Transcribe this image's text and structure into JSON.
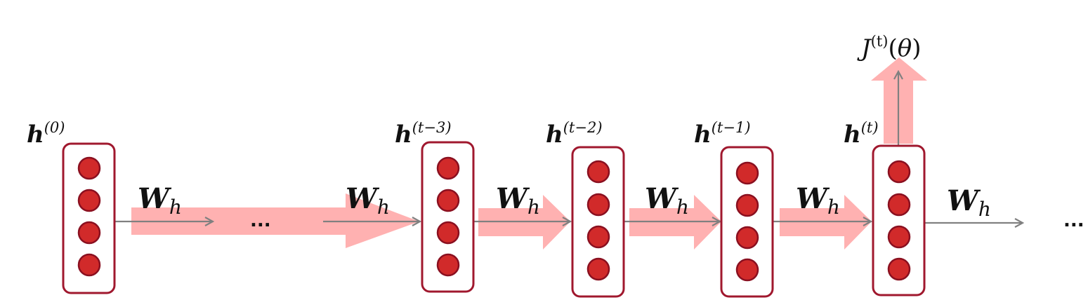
{
  "nodes": [
    {
      "label": "h",
      "superscript": "(0)"
    },
    {
      "label": "h",
      "superscript": "(t−3)"
    },
    {
      "label": "h",
      "superscript": "(t−2)"
    },
    {
      "label": "h",
      "superscript": "(t−1)"
    },
    {
      "label": "h",
      "superscript": "(t)"
    }
  ],
  "weights": [
    {
      "label": "W",
      "subscript": "h"
    },
    {
      "label": "W",
      "subscript": "h"
    },
    {
      "label": "W",
      "subscript": "h"
    },
    {
      "label": "W",
      "subscript": "h"
    },
    {
      "label": "W",
      "subscript": "h"
    },
    {
      "label": "W",
      "subscript": "h"
    }
  ],
  "ellipsis_middle": "...",
  "ellipsis_end": "...",
  "output": {
    "prefix": "J",
    "superscript": "(t)",
    "argument_open": "(",
    "argument": "θ",
    "argument_close": ")"
  },
  "colors": {
    "node_border": "#a0182e",
    "neuron_fill": "#d12a2a",
    "neuron_stroke": "#8a1020",
    "arrow_line": "#808080",
    "gradient_arrow": "#ffadad"
  }
}
